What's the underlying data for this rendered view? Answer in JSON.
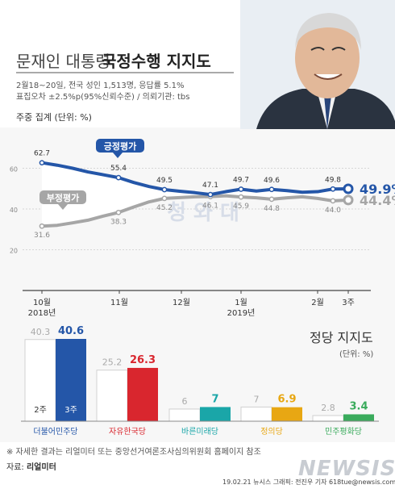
{
  "header": {
    "title_plain": "문재인 대통령",
    "title_bold": "국정수행 지지도",
    "survey_line1": "2월18~20일, 전국 성인 1,513명, 응답률 5.1%",
    "survey_line2": "표집오차 ±2.5%p(95%신뢰수준) / 의뢰기관: tbs",
    "weekly_label": "주중 집계 (단위: %)"
  },
  "watermark": {
    "text": "청 와 대"
  },
  "colors": {
    "positive": "#2456a8",
    "negative": "#a6a6a6",
    "prev_week": "#ffffff",
    "this_week": "#2456a8"
  },
  "chart_data": [
    {
      "type": "line",
      "title": "주중 집계",
      "unit": "%",
      "ylim": [
        0,
        80
      ],
      "yticks": [
        0,
        20,
        40,
        60
      ],
      "x_labels": [
        {
          "label": "10월",
          "sub": "2018년"
        },
        {
          "label": "11월",
          "sub": ""
        },
        {
          "label": "12월",
          "sub": ""
        },
        {
          "label": "1월",
          "sub": "2019년"
        },
        {
          "label": "2월",
          "sub": ""
        },
        {
          "label": "3주",
          "sub": ""
        }
      ],
      "series": [
        {
          "name": "긍정평가",
          "color": "#2456a8",
          "values": [
            62.7,
            61.5,
            60.0,
            58.2,
            56.8,
            55.4,
            53.0,
            51.0,
            49.5,
            48.7,
            48.0,
            47.1,
            48.5,
            49.7,
            48.8,
            49.6,
            49.0,
            48.2,
            48.5,
            49.8,
            49.9
          ],
          "labels": {
            "0": "62.7",
            "5": "55.4",
            "8": "49.5",
            "11": "47.1",
            "13": "49.7",
            "15": "49.6",
            "19": "49.8",
            "20": "49.9%"
          }
        },
        {
          "name": "부정평가",
          "color": "#a6a6a6",
          "values": [
            31.6,
            32.0,
            33.2,
            34.5,
            36.5,
            38.3,
            41.0,
            43.5,
            45.2,
            45.6,
            46.0,
            46.1,
            46.5,
            45.9,
            45.5,
            44.8,
            45.5,
            46.0,
            45.2,
            44.0,
            44.4
          ],
          "labels": {
            "0": "31.6",
            "5": "38.3",
            "8": "45.2",
            "11": "46.1",
            "13": "45.9",
            "15": "44.8",
            "19": "44.0",
            "20": "44.4%"
          }
        }
      ]
    },
    {
      "type": "bar",
      "title": "정당 지지도",
      "unit": "(단위: %)",
      "categories": [
        "더불어민주당",
        "자유한국당",
        "바른미래당",
        "정의당",
        "민주평화당"
      ],
      "series": [
        {
          "name": "2주",
          "values": [
            40.3,
            25.2,
            6,
            7,
            2.8
          ]
        },
        {
          "name": "3주",
          "values": [
            40.6,
            26.3,
            7,
            6.9,
            3.4
          ]
        }
      ],
      "this_week_colors": [
        "#2456a8",
        "#d9262e",
        "#1aa6a8",
        "#e8a713",
        "#3aab5c"
      ],
      "prev_week_label_values": [
        "40.3",
        "25.2",
        "6",
        "7",
        "2.8"
      ],
      "this_week_label_values": [
        "40.6",
        "26.3",
        "7",
        "6.9",
        "3.4"
      ]
    }
  ],
  "footer": {
    "note": "※ 자세한 결과는 리얼미터 또는 중앙선거여론조사심의위원회 홈페이지 참조",
    "source_label": "자료:",
    "source": "리얼미터",
    "credit": "19.02.21  뉴시스 그래픽: 전진우 기자 618tue@newsis.com",
    "brand": "NEWSIS"
  }
}
